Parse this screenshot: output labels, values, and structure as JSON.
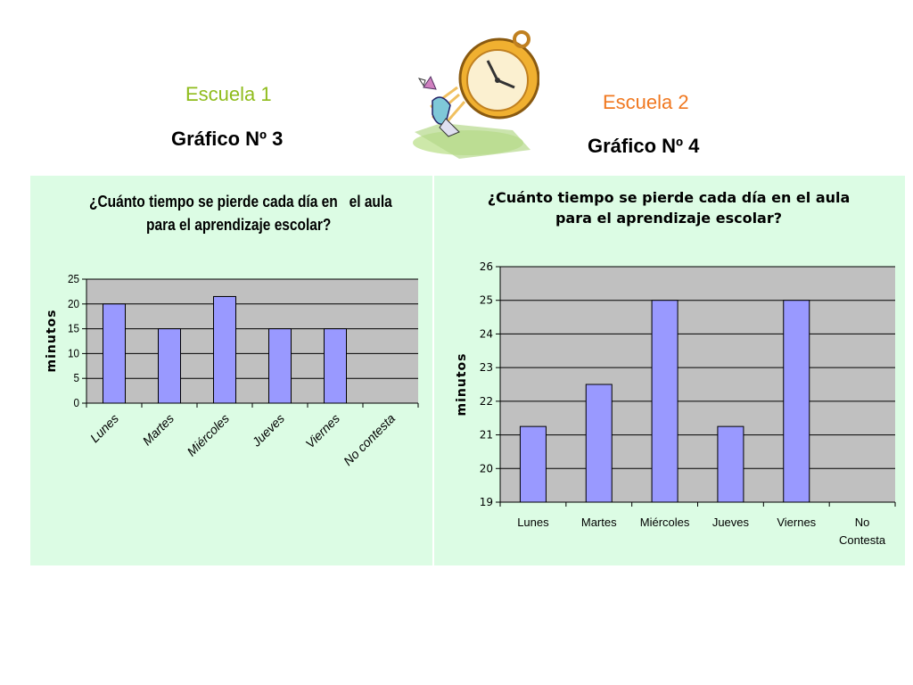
{
  "header": {
    "school1": "Escuela 1",
    "school1_color": "#8fbc1c",
    "graph1": "Gráfico Nº 3",
    "school2": "Escuela 2",
    "school2_color": "#f07820",
    "graph2": "Gráfico Nº 4"
  },
  "clipart_icon": "flying-clock-icon",
  "colors": {
    "panel_bg": "#dcfce4",
    "plot_bg": "#c0c0c0",
    "bar_fill": "#9999ff"
  },
  "chart_data": [
    {
      "type": "bar",
      "title_line1": "¿Cuánto tiempo se pierde cada día en   el aula",
      "title_line2": "para el aprendizaje escolar?",
      "categories": [
        "Lunes",
        "Martes",
        "Miércoles",
        "Jueves",
        "Viernes",
        "No contesta"
      ],
      "values": [
        20,
        15,
        21.5,
        15,
        15,
        0
      ],
      "ylabel": "minutos",
      "xlabel": "",
      "ylim": [
        0,
        25
      ],
      "yticks": [
        "0",
        "5",
        "10",
        "15",
        "20",
        "25"
      ],
      "grid": true,
      "rotated_labels": true
    },
    {
      "type": "bar",
      "title_line1": "¿Cuánto tiempo se pierde cada día en el aula",
      "title_line2": "para el aprendizaje escolar?",
      "categories": [
        "Lunes",
        "Martes",
        "Miércoles",
        "Jueves",
        "Viernes",
        "No Contesta"
      ],
      "values": [
        21.25,
        22.5,
        25,
        21.25,
        25,
        19
      ],
      "ylabel": "minutos",
      "xlabel": "",
      "ylim": [
        19,
        26
      ],
      "yticks": [
        "19",
        "20",
        "21",
        "22",
        "23",
        "24",
        "25",
        "26"
      ],
      "grid": true,
      "rotated_labels": false
    }
  ]
}
